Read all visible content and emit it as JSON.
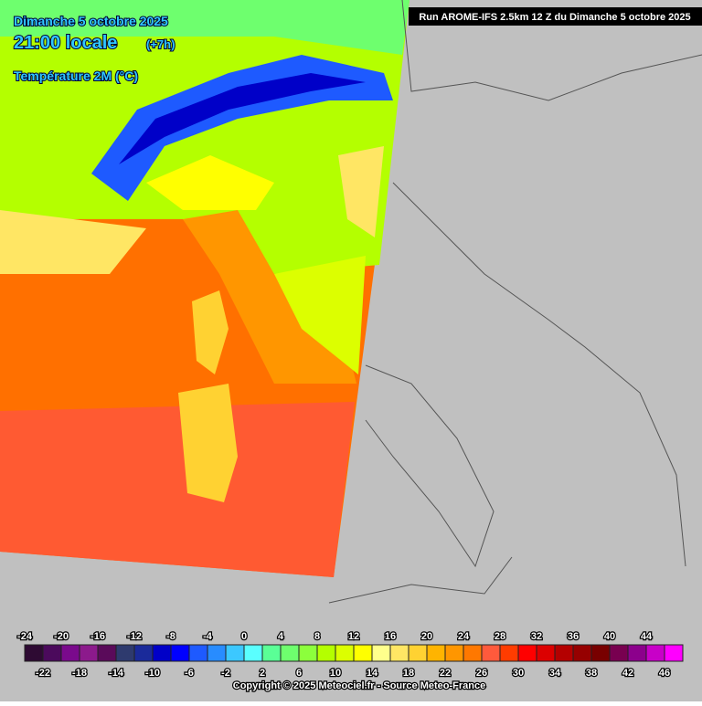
{
  "header": {
    "run": "Run AROME-IFS 2.5km 12 Z du Dimanche 5 octobre 2025"
  },
  "title": {
    "date": "Dimanche 5 octobre 2025",
    "time": "21:00 locale",
    "lead": "(+7h)",
    "variable": "Température 2M (°C)"
  },
  "legend": {
    "values": [
      -24,
      -22,
      -20,
      -18,
      -16,
      -14,
      -12,
      -10,
      -8,
      -6,
      -4,
      -2,
      0,
      2,
      4,
      6,
      8,
      10,
      12,
      14,
      16,
      18,
      20,
      22,
      24,
      26,
      28,
      30,
      32,
      34,
      36,
      38,
      40,
      42,
      44,
      46
    ],
    "colors": [
      "#2e0a33",
      "#4b0a5c",
      "#7a0a8c",
      "#8c1a8c",
      "#5a0a5a",
      "#2e3a6e",
      "#1a2a9a",
      "#0000c8",
      "#0000ff",
      "#1e5aff",
      "#288cff",
      "#3cc8ff",
      "#5affff",
      "#5aff96",
      "#6eff6e",
      "#8cff3c",
      "#b4ff00",
      "#dcff00",
      "#ffff00",
      "#ffff8c",
      "#ffe664",
      "#ffd232",
      "#ffb400",
      "#ff9600",
      "#ff7800",
      "#ff5a3c",
      "#ff3c00",
      "#ff0000",
      "#dc0000",
      "#b40000",
      "#960000",
      "#780000",
      "#780050",
      "#8c008c",
      "#c800c8",
      "#ff00ff"
    ]
  },
  "footer": {
    "copyright": "Copyright © 2025 Meteociel.fr - Source Meteo-France"
  }
}
